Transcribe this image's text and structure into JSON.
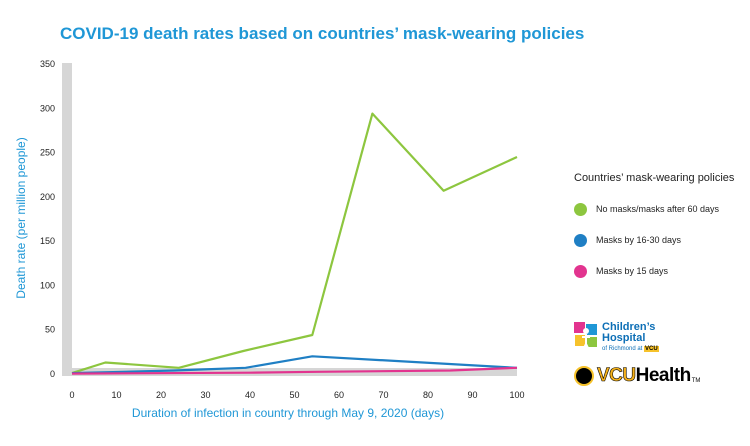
{
  "chart_data": {
    "type": "line",
    "title": "COVID-19 death rates based on countries’ mask-wearing policies",
    "xlabel": "Duration of infection in country through May 9, 2020 (days)",
    "ylabel": "Death rate (per million people)",
    "xlim": [
      0,
      100
    ],
    "ylim": [
      0,
      350
    ],
    "xticks": [
      0,
      10,
      20,
      30,
      40,
      50,
      60,
      70,
      80,
      90,
      100
    ],
    "yticks": [
      0,
      50,
      100,
      150,
      200,
      250,
      300,
      350
    ],
    "grid": false,
    "legend": {
      "title": "Countries’ mask-wearing policies",
      "position": "right"
    },
    "series": [
      {
        "name": "No masks/masks after 60 days",
        "color": "#8dc63f",
        "x": [
          0,
          7.5,
          24,
          38.5,
          54,
          67.5,
          83.5,
          100
        ],
        "y": [
          1,
          13,
          7,
          26,
          44,
          294,
          207,
          245
        ]
      },
      {
        "name": "Masks by 16-30 days",
        "color": "#1f7fc4",
        "x": [
          0,
          23,
          39,
          54,
          100
        ],
        "y": [
          1,
          4,
          7,
          20,
          7
        ]
      },
      {
        "name": "Masks by 15 days",
        "color": "#e2348f",
        "x": [
          0,
          40,
          55,
          85,
          100
        ],
        "y": [
          0.5,
          1.5,
          2.5,
          4,
          7
        ]
      }
    ]
  },
  "logos": {
    "childrens_line1": "Children’s",
    "childrens_line2": "Hospital",
    "childrens_line3": "of Richmond at",
    "childrens_line3_highlight": "VCU",
    "vcu_health_part1": "VCU",
    "vcu_health_part2": "Health",
    "vcu_health_mark": "TM"
  }
}
